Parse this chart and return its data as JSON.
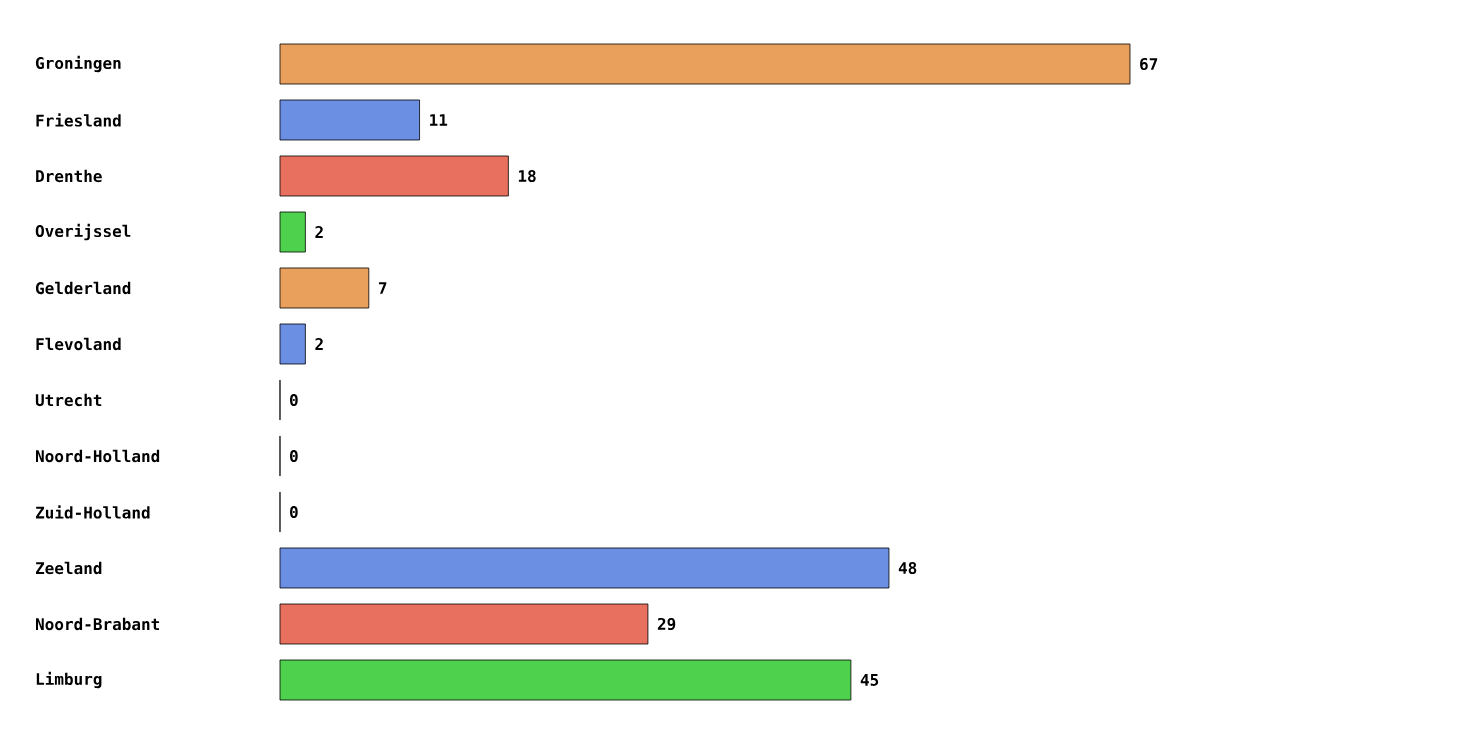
{
  "chart_data": {
    "type": "bar",
    "orientation": "horizontal",
    "data_labels": true,
    "categories": [
      "Groningen",
      "Friesland",
      "Drenthe",
      "Overijssel",
      "Gelderland",
      "Flevoland",
      "Utrecht",
      "Noord-Holland",
      "Zuid-Holland",
      "Zeeland",
      "Noord-Brabant",
      "Limburg"
    ],
    "values": [
      67,
      11,
      18,
      2,
      7,
      2,
      0,
      0,
      0,
      48,
      29,
      45
    ],
    "colors": [
      "#e8a05c",
      "#6a8fe3",
      "#e8705e",
      "#4ed24e",
      "#e8a05c",
      "#6a8fe3",
      "#e8705e",
      "#4ed24e",
      "#e8a05c",
      "#6a8fe3",
      "#e8705e",
      "#4ed24e"
    ]
  }
}
